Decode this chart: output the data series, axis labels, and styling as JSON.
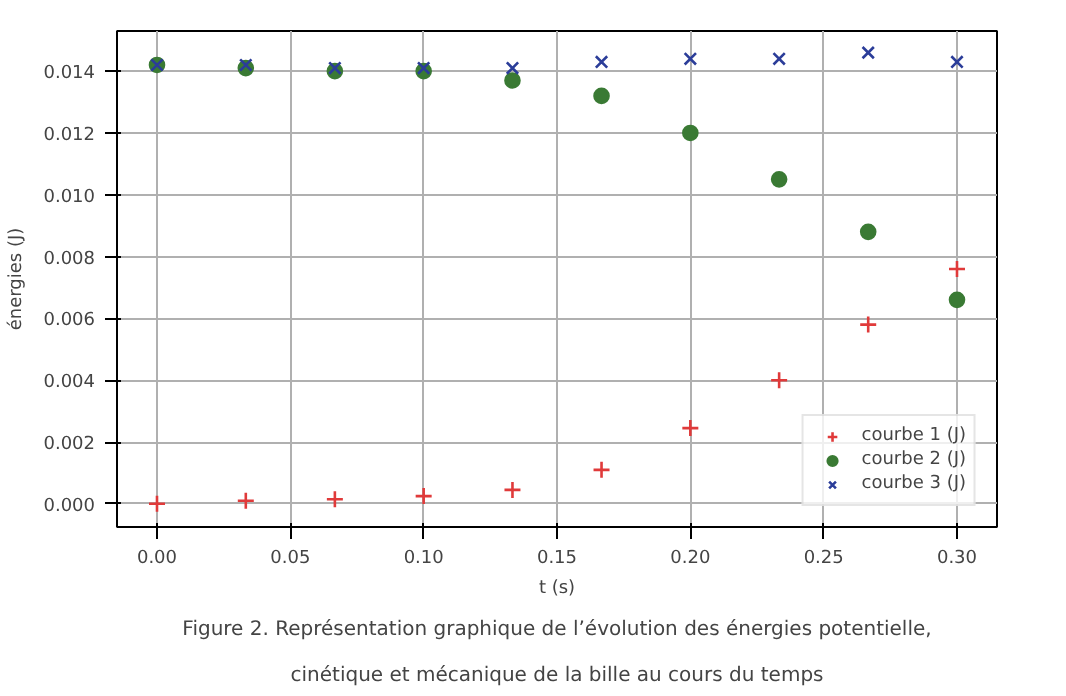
{
  "chart_data": {
    "type": "scatter",
    "xlabel": "t (s)",
    "ylabel": "énergies (J)",
    "x": [
      0,
      0.0333,
      0.0667,
      0.1,
      0.1333,
      0.1667,
      0.2,
      0.2333,
      0.2667,
      0.3
    ],
    "series": [
      {
        "name": "courbe 1 (J)",
        "color": "#e03a3a",
        "marker": "cross",
        "values": [
          0,
          0.0001,
          0.00015,
          0.00025,
          0.00045,
          0.0011,
          0.00245,
          0.004,
          0.0058,
          0.0076
        ]
      },
      {
        "name": "courbe 2 (J)",
        "color": "#3a7a34",
        "marker": "circle",
        "values": [
          0.0142,
          0.0141,
          0.014,
          0.014,
          0.0137,
          0.0132,
          0.012,
          0.0105,
          0.0088,
          0.0066
        ]
      },
      {
        "name": "courbe 3 (J)",
        "color": "#2b3d99",
        "marker": "x",
        "values": [
          0.0142,
          0.0142,
          0.0141,
          0.0141,
          0.0141,
          0.0143,
          0.0144,
          0.0144,
          0.0146,
          0.0143
        ]
      }
    ],
    "xlim": [
      -0.015,
      0.315
    ],
    "ylim": [
      -0.00075,
      0.0153
    ],
    "xticks": [
      {
        "value": 0,
        "label": "0.00"
      },
      {
        "value": 0.05,
        "label": "0.05"
      },
      {
        "value": 0.1,
        "label": "0.10"
      },
      {
        "value": 0.15,
        "label": "0.15"
      },
      {
        "value": 0.2,
        "label": "0.20"
      },
      {
        "value": 0.25,
        "label": "0.25"
      },
      {
        "value": 0.3,
        "label": "0.30"
      }
    ],
    "yticks": [
      {
        "value": 0,
        "label": "0.000"
      },
      {
        "value": 0.002,
        "label": "0.002"
      },
      {
        "value": 0.004,
        "label": "0.004"
      },
      {
        "value": 0.006,
        "label": "0.006"
      },
      {
        "value": 0.008,
        "label": "0.008"
      },
      {
        "value": 0.01,
        "label": "0.010"
      },
      {
        "value": 0.012,
        "label": "0.012"
      },
      {
        "value": 0.014,
        "label": "0.014"
      }
    ],
    "grid": true,
    "legend": "bottom right",
    "annotations": [
      "Figure 2. Représentation graphique de l’évolution des énergies potentielle,",
      "cinétique et mécanique de la bille au cours du temps"
    ]
  }
}
